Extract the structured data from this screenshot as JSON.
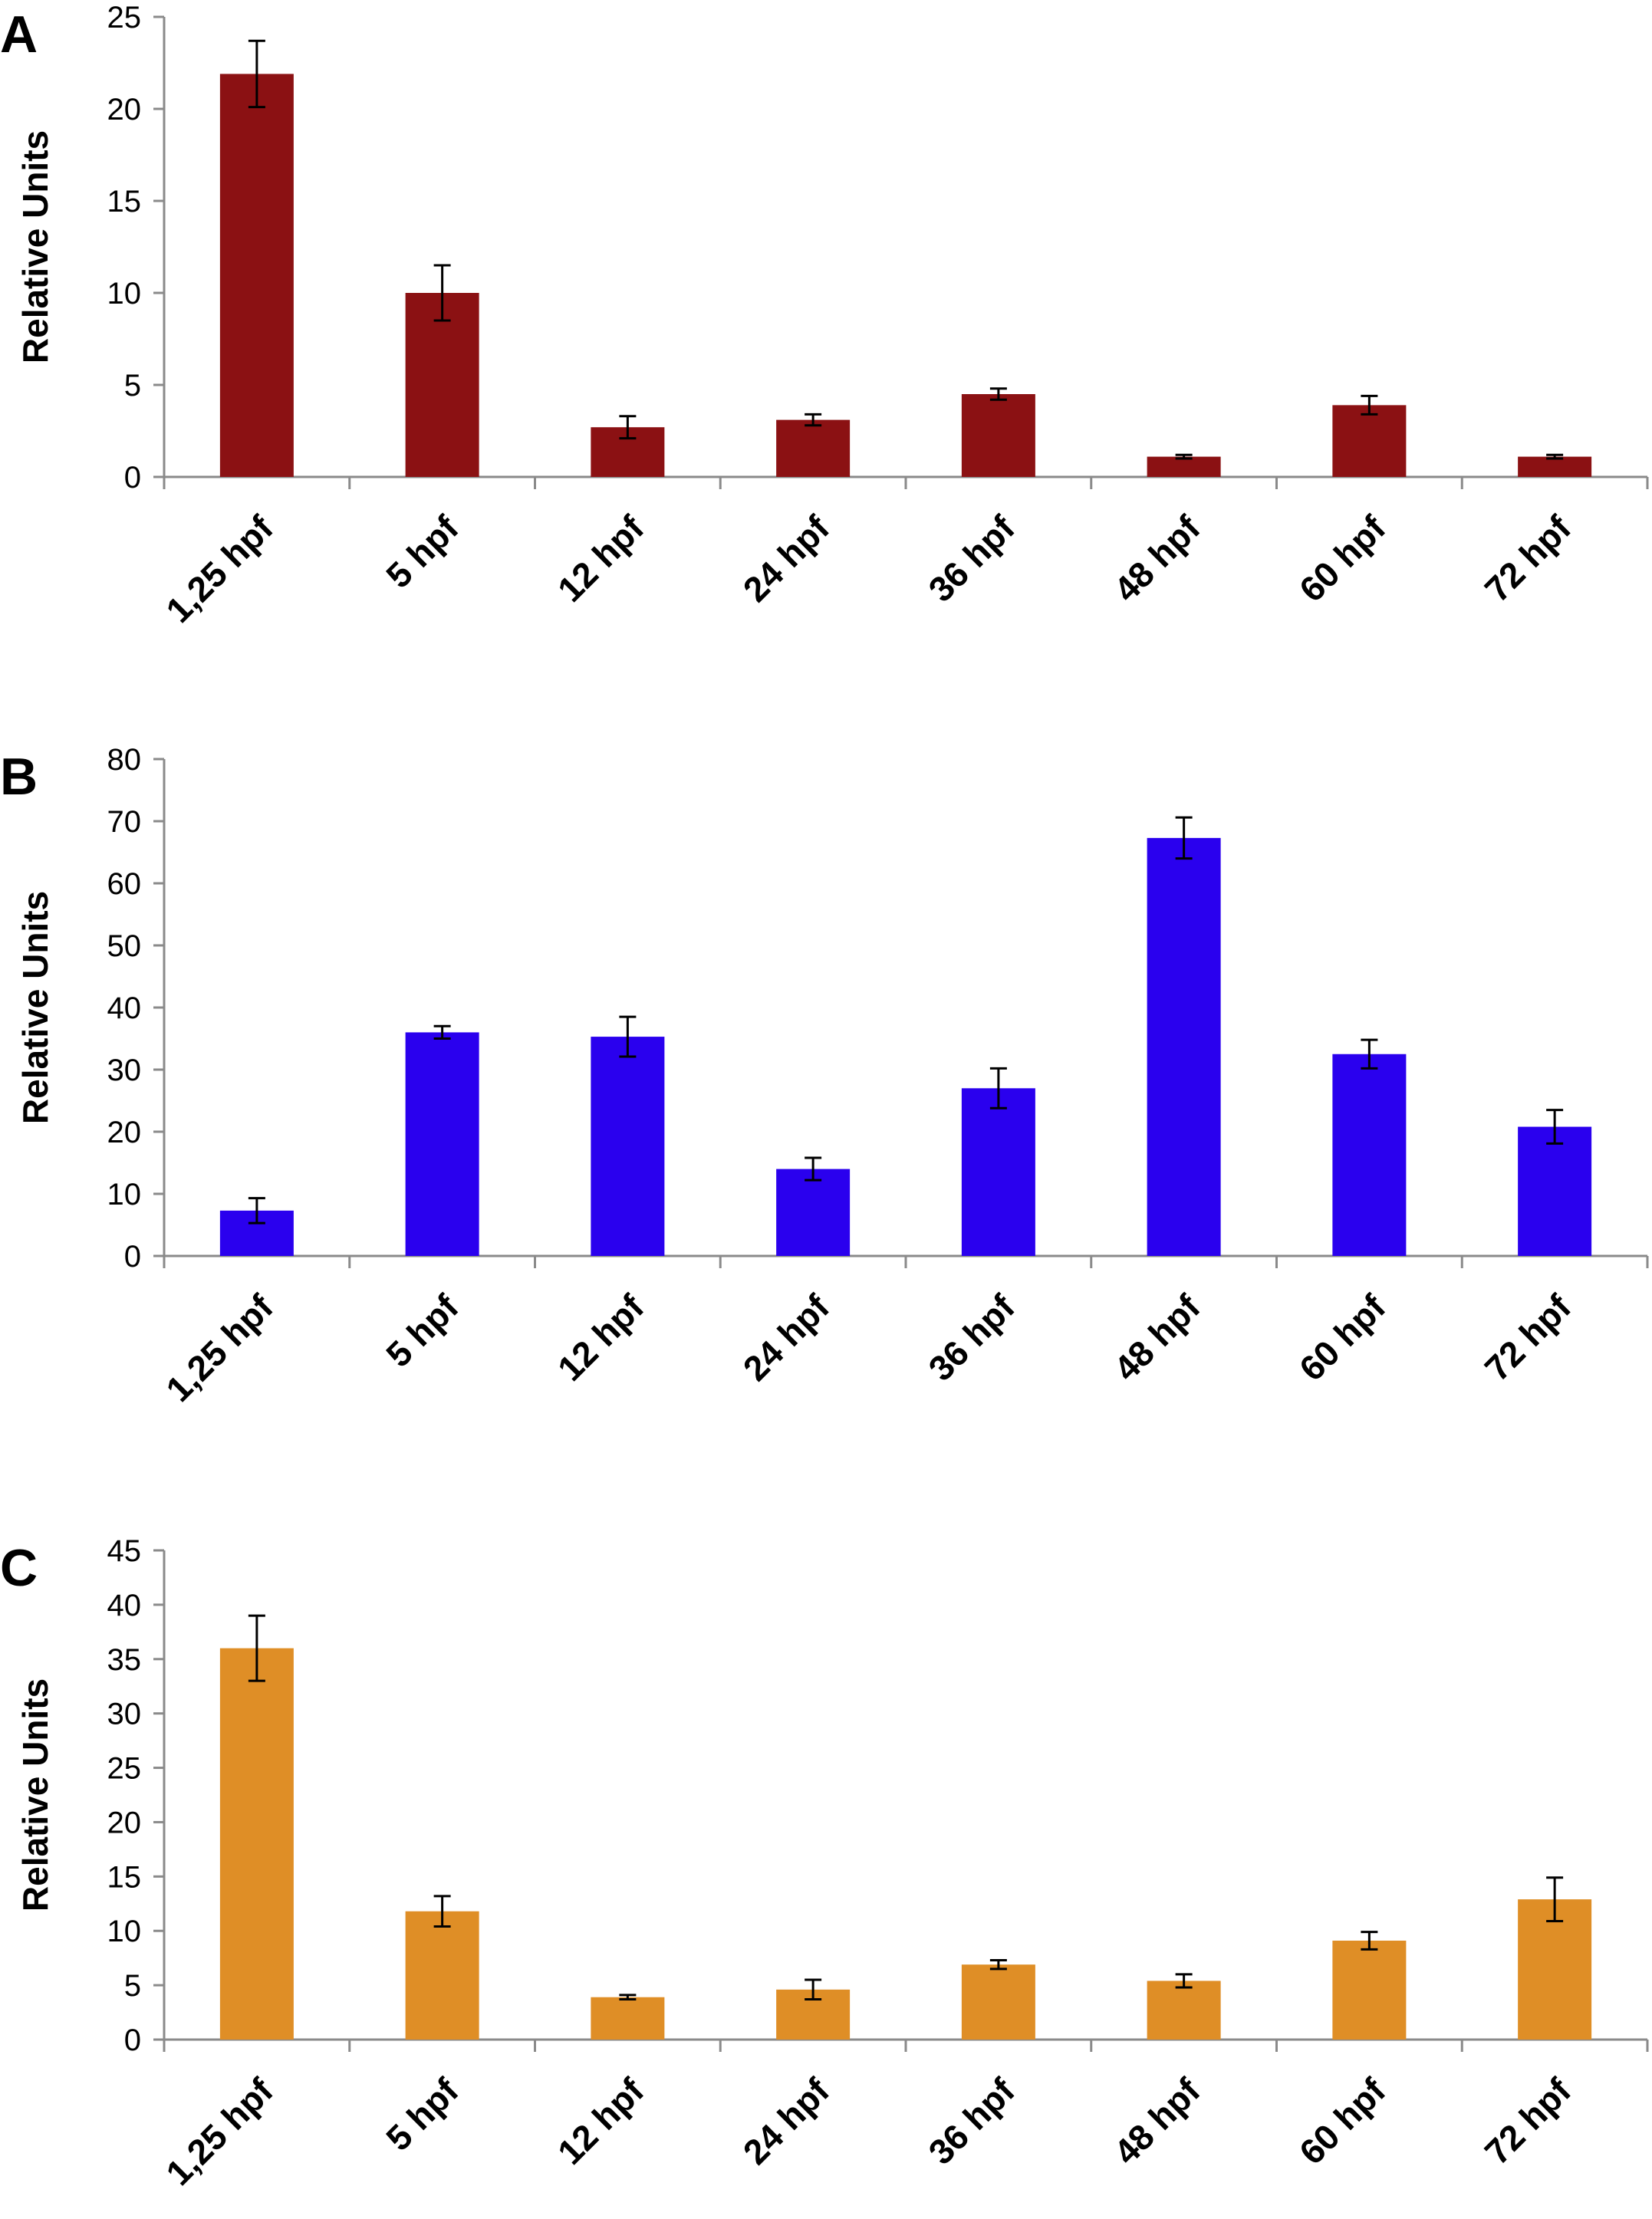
{
  "chart_data": [
    {
      "panel": "A",
      "type": "bar",
      "categories": [
        "1,25 hpf",
        "5 hpf",
        "12 hpf",
        "24 hpf",
        "36 hpf",
        "48 hpf",
        "60 hpf",
        "72 hpf"
      ],
      "values": [
        21.9,
        10.0,
        2.7,
        3.1,
        4.5,
        1.1,
        3.9,
        1.1
      ],
      "errors": [
        1.8,
        1.5,
        0.6,
        0.3,
        0.3,
        0.1,
        0.5,
        0.1
      ],
      "ylabel": "Relative Units",
      "ylim": [
        0,
        25
      ],
      "yticks": [
        0,
        5,
        10,
        15,
        20,
        25
      ],
      "color": "#8b1113"
    },
    {
      "panel": "B",
      "type": "bar",
      "categories": [
        "1,25 hpf",
        "5 hpf",
        "12 hpf",
        "24 hpf",
        "36 hpf",
        "48 hpf",
        "60 hpf",
        "72 hpf"
      ],
      "values": [
        7.3,
        36.0,
        35.3,
        14.0,
        27.0,
        67.3,
        32.5,
        20.8
      ],
      "errors": [
        2.0,
        1.0,
        3.2,
        1.8,
        3.2,
        3.3,
        2.3,
        2.7
      ],
      "ylabel": "Relative Units",
      "ylim": [
        0,
        80
      ],
      "yticks": [
        0,
        10,
        20,
        30,
        40,
        50,
        60,
        70,
        80
      ],
      "color": "#2a00ee"
    },
    {
      "panel": "C",
      "type": "bar",
      "categories": [
        "1,25 hpf",
        "5 hpf",
        "12 hpf",
        "24 hpf",
        "36 hpf",
        "48 hpf",
        "60 hpf",
        "72 hpf"
      ],
      "values": [
        36.0,
        11.8,
        3.9,
        4.6,
        6.9,
        5.4,
        9.1,
        12.9
      ],
      "errors": [
        3.0,
        1.4,
        0.2,
        0.9,
        0.4,
        0.6,
        0.8,
        2.0
      ],
      "ylabel": "Relative Units",
      "ylim": [
        0,
        45
      ],
      "yticks": [
        0,
        5,
        10,
        15,
        20,
        25,
        30,
        35,
        40,
        45
      ],
      "color": "#df8e26"
    }
  ]
}
